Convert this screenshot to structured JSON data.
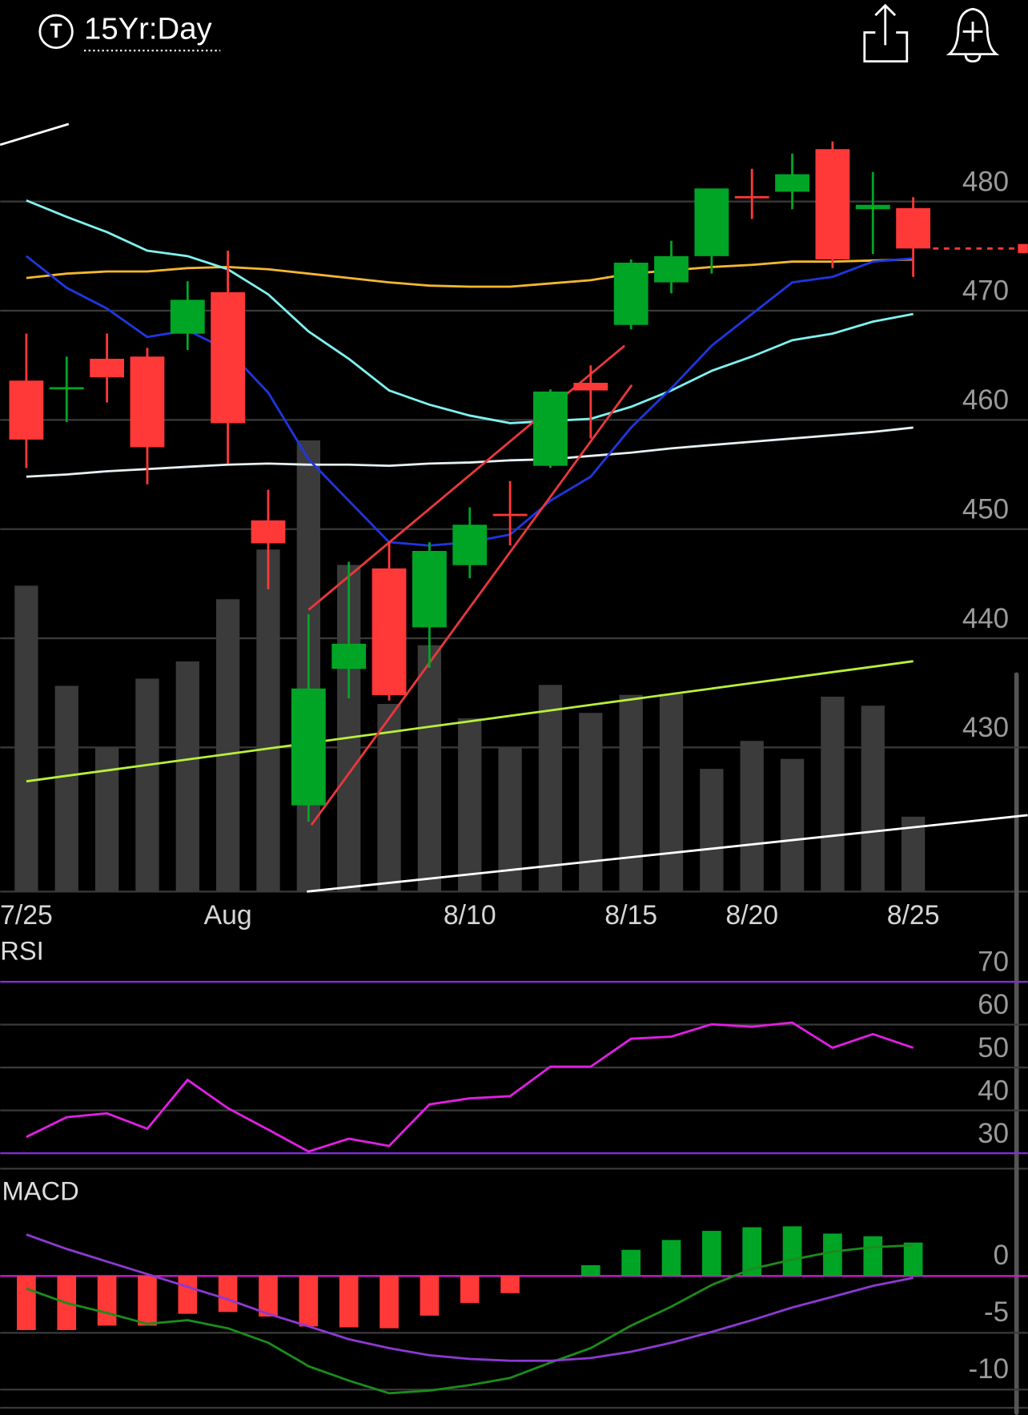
{
  "header": {
    "symbol_icon": "T",
    "timeframe": "15Yr:Day"
  },
  "chart_data": [
    {
      "type": "candlestick",
      "categories": [
        "7/25",
        null,
        null,
        null,
        null,
        "Aug",
        null,
        null,
        null,
        null,
        null,
        "8/10",
        null,
        null,
        null,
        "8/15",
        null,
        null,
        "8/20",
        null,
        null,
        null,
        "8/25"
      ],
      "open": [
        463.6,
        462.9,
        465.6,
        465.8,
        467.9,
        471.7,
        450.8,
        424.7,
        437.2,
        446.4,
        441.0,
        446.7,
        451.4,
        455.8,
        463.4,
        468.7,
        472.6,
        475.0,
        480.5,
        480.9,
        484.8,
        479.3,
        479.4
      ],
      "high": [
        467.9,
        465.8,
        467.9,
        466.6,
        472.7,
        475.5,
        453.6,
        442.2,
        447.0,
        448.8,
        448.8,
        452.0,
        454.4,
        462.8,
        465.0,
        474.7,
        476.4,
        481.2,
        483.0,
        484.4,
        485.5,
        482.7,
        480.4
      ],
      "low": [
        455.6,
        459.8,
        461.6,
        454.1,
        466.4,
        456.0,
        444.5,
        423.2,
        434.5,
        434.3,
        437.3,
        445.5,
        448.5,
        455.6,
        458.3,
        468.3,
        471.6,
        473.4,
        478.4,
        479.3,
        473.9,
        475.2,
        473.1
      ],
      "close": [
        458.2,
        463.0,
        463.9,
        457.5,
        471.0,
        459.7,
        448.7,
        435.4,
        439.5,
        434.8,
        448.0,
        450.4,
        451.3,
        462.6,
        462.7,
        474.4,
        475.0,
        481.2,
        480.3,
        482.5,
        474.7,
        479.7,
        475.7
      ],
      "volume": [
        339,
        228,
        160,
        236,
        255,
        324,
        379,
        500,
        362,
        208,
        273,
        192,
        160,
        229,
        198,
        218,
        219,
        136,
        167,
        147,
        216,
        206,
        83
      ],
      "volume_lim": [
        0,
        928
      ],
      "up_color": "#00a526",
      "down_color": "#ff3838",
      "volume_color": "#3b3b3b",
      "series": [
        {
          "color": "#e8f0f4",
          "values": [
            454.8,
            455.0,
            455.3,
            455.5,
            455.7,
            455.9,
            456.0,
            455.9,
            455.9,
            455.8,
            456.0,
            456.1,
            456.3,
            456.4,
            456.7,
            457.0,
            457.4,
            457.7,
            458.0,
            458.3,
            458.6,
            458.9,
            459.3
          ]
        },
        {
          "color": "#b8f03a",
          "values": [
            426.9,
            427.4,
            427.9,
            428.4,
            428.9,
            429.4,
            429.9,
            430.4,
            430.9,
            431.4,
            431.9,
            432.4,
            432.9,
            433.4,
            433.9,
            434.4,
            434.9,
            435.4,
            435.9,
            436.4,
            436.9,
            437.4,
            437.9
          ]
        },
        {
          "color": "#f5b82e",
          "values": [
            473.0,
            473.4,
            473.6,
            473.6,
            473.9,
            474.0,
            473.8,
            473.4,
            473.0,
            472.6,
            472.3,
            472.2,
            472.2,
            472.5,
            472.8,
            473.4,
            473.7,
            474.0,
            474.2,
            474.5,
            474.5,
            474.6,
            474.7
          ]
        },
        {
          "color": "#7ff2f0",
          "values": [
            480.1,
            478.6,
            477.2,
            475.5,
            475.0,
            473.8,
            471.5,
            468.1,
            465.6,
            462.7,
            461.4,
            460.4,
            459.7,
            459.9,
            460.1,
            461.2,
            462.7,
            464.5,
            465.8,
            467.3,
            467.9,
            469.0,
            469.7
          ]
        },
        {
          "color": "#1f36e0",
          "values": [
            475.0,
            472.1,
            470.2,
            467.6,
            468.2,
            466.4,
            462.5,
            456.4,
            452.6,
            448.8,
            448.5,
            448.8,
            449.5,
            452.6,
            454.8,
            459.3,
            462.9,
            466.8,
            469.7,
            472.6,
            473.1,
            474.5,
            474.8
          ]
        }
      ],
      "trendlines": [
        {
          "color": "#ffffff",
          "x": [
            -0.65,
            1.05
          ],
          "y": [
            485.2,
            487.1
          ]
        },
        {
          "color": "#ffffff",
          "x": [
            6.96,
            24.84
          ],
          "y": [
            416.8,
            423.8
          ]
        },
        {
          "color": "#e8383d",
          "x": [
            7.0,
            14.84
          ],
          "y": [
            442.6,
            466.8
          ]
        },
        {
          "color": "#e8383d",
          "x": [
            7.07,
            15.02
          ],
          "y": [
            422.9,
            463.2
          ]
        }
      ],
      "ylim": [
        416.8,
        493.5
      ],
      "yticks": [
        480,
        470,
        460,
        450,
        440,
        430
      ],
      "grid": true,
      "grid_color": "#3a3a3a"
    },
    {
      "type": "line",
      "title": "RSI",
      "series": [
        {
          "color": "#e21fe2",
          "values": [
            33.8,
            38.4,
            39.3,
            35.7,
            47.1,
            40.5,
            35.5,
            30.4,
            33.4,
            31.7,
            41.4,
            42.8,
            43.3,
            50.2,
            50.2,
            56.7,
            57.2,
            60.1,
            59.5,
            60.5,
            54.6,
            57.8,
            54.6
          ]
        }
      ],
      "ylim": [
        26.4,
        80.1
      ],
      "yticks": [
        70,
        60,
        50,
        40,
        30
      ],
      "grid_colors": [
        "#8a2be2",
        "#3a3a3a",
        "#3a3a3a",
        "#3a3a3a",
        "#8a2be2"
      ]
    },
    {
      "type": "macd",
      "title": "MACD",
      "histogram": [
        -4.76,
        -4.76,
        -4.37,
        -4.37,
        -3.33,
        -3.17,
        -3.57,
        -4.44,
        -4.52,
        -4.6,
        -3.49,
        -2.38,
        -1.51,
        0,
        0.95,
        2.3,
        3.17,
        3.97,
        4.29,
        4.37,
        3.73,
        3.49,
        2.94
      ],
      "up_color": "#00a526",
      "down_color": "#ff3838",
      "series": [
        {
          "color": "#1c8c1c",
          "values": [
            -1.11,
            -2.38,
            -3.25,
            -4.21,
            -3.89,
            -4.6,
            -5.87,
            -7.94,
            -9.21,
            -10.32,
            -10.08,
            -9.6,
            -8.97,
            -7.62,
            -6.35,
            -4.37,
            -2.7,
            -0.79,
            0.63,
            1.43,
            2.14,
            2.54,
            2.7
          ]
        },
        {
          "color": "#8c3ad2",
          "values": [
            3.65,
            2.38,
            1.27,
            0.16,
            -0.95,
            -2.06,
            -3.33,
            -4.44,
            -5.56,
            -6.35,
            -6.98,
            -7.3,
            -7.46,
            -7.46,
            -7.22,
            -6.67,
            -5.87,
            -4.92,
            -3.89,
            -2.78,
            -1.83,
            -0.87,
            -0.16
          ]
        }
      ],
      "ylim": [
        -11.6,
        9.05
      ],
      "yticks": [
        0,
        -5,
        -10
      ],
      "grid_colors": [
        "#d21ed2",
        "#3a3a3a",
        "#3a3a3a"
      ]
    }
  ]
}
